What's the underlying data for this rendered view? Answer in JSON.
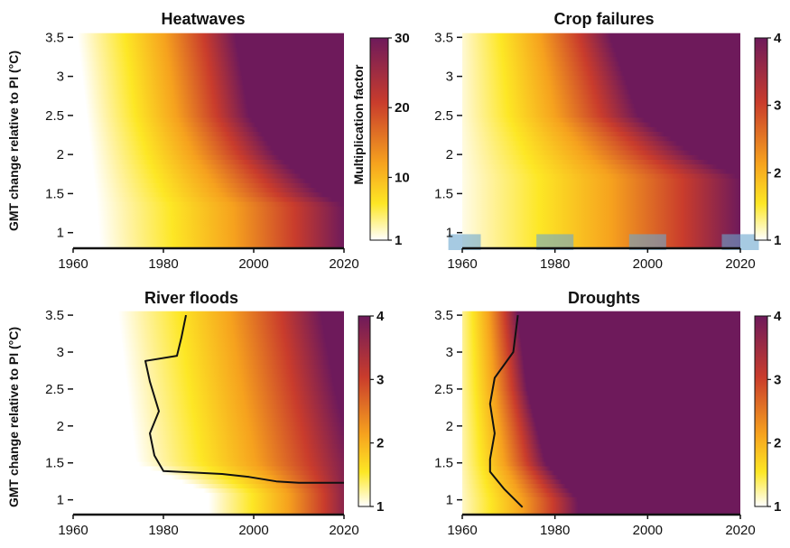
{
  "chart_data": [
    {
      "type": "heatmap",
      "title": "Heatwaves",
      "ylabel": "GMT change relative to PI (°C)",
      "xlabel": "",
      "xlim": [
        1960,
        2020
      ],
      "ylim": [
        0.8,
        3.55
      ],
      "x_ticks": [
        "1960",
        "1980",
        "2000",
        "2020"
      ],
      "y_ticks": [
        "1",
        "1.5",
        "2",
        "2.5",
        "3",
        "3.5"
      ],
      "colorbar": {
        "label": "Multiplication factor",
        "range": [
          1,
          30
        ],
        "ticks": [
          "1",
          "10",
          "20",
          "30"
        ]
      },
      "colors": {
        "low": "#ffffff",
        "mid1": "#fde725",
        "mid2": "#f6a21e",
        "mid3": "#c93c2c",
        "high": "#6e1a5b"
      },
      "onset": [
        [
          1961,
          3.5
        ],
        [
          1963,
          2.5
        ],
        [
          1965,
          1.5
        ],
        [
          1966,
          0.8
        ]
      ],
      "saturation": [
        [
          1996,
          3.5
        ],
        [
          1999,
          2.5
        ],
        [
          2005,
          2.0
        ],
        [
          2015,
          1.5
        ],
        [
          2020,
          1.35
        ]
      ],
      "contour": []
    },
    {
      "type": "heatmap",
      "title": "Crop failures",
      "ylabel": "",
      "xlabel": "",
      "xlim": [
        1960,
        2020
      ],
      "ylim": [
        0.8,
        3.55
      ],
      "x_ticks": [
        "1960",
        "1980",
        "2000",
        "2020"
      ],
      "y_ticks": [
        "1",
        "1.5",
        "2",
        "2.5",
        "3",
        "3.5"
      ],
      "colorbar": {
        "label": "",
        "range": [
          1,
          4
        ],
        "ticks": [
          "1",
          "2",
          "3",
          "4"
        ]
      },
      "highlight_periods": [
        [
          1957,
          1964
        ],
        [
          1976,
          1984
        ],
        [
          1996,
          2004
        ],
        [
          2016,
          2024
        ]
      ],
      "onset": [
        [
          1958,
          3.5
        ],
        [
          1958,
          0.8
        ]
      ],
      "saturation": [
        [
          1992,
          3.5
        ],
        [
          1998,
          2.5
        ],
        [
          2010,
          2.0
        ],
        [
          2020,
          1.7
        ]
      ],
      "contour": []
    },
    {
      "type": "heatmap",
      "title": "River floods",
      "ylabel": "GMT change relative to PI (°C)",
      "xlabel": "",
      "xlim": [
        1960,
        2020
      ],
      "ylim": [
        0.8,
        3.55
      ],
      "x_ticks": [
        "1960",
        "1980",
        "2000",
        "2020"
      ],
      "y_ticks": [
        "1",
        "1.5",
        "2",
        "2.5",
        "3",
        "3.5"
      ],
      "colorbar": {
        "label": "",
        "range": [
          1,
          4
        ],
        "ticks": [
          "1",
          "2",
          "3",
          "4"
        ]
      },
      "onset": [
        [
          1970,
          3.5
        ],
        [
          1972,
          2.5
        ],
        [
          1974,
          1.5
        ],
        [
          1990,
          1.1
        ]
      ],
      "saturation": [
        [
          2015,
          3.5
        ],
        [
          2018,
          2.5
        ],
        [
          2022,
          1.5
        ]
      ],
      "contour": [
        [
          1985,
          3.5
        ],
        [
          1984,
          3.2
        ],
        [
          1983,
          2.95
        ],
        [
          1976,
          2.88
        ],
        [
          1977,
          2.6
        ],
        [
          1979,
          2.2
        ],
        [
          1977,
          1.9
        ],
        [
          1978,
          1.6
        ],
        [
          1980,
          1.39
        ],
        [
          1993,
          1.35
        ],
        [
          1999,
          1.31
        ],
        [
          2005,
          1.25
        ],
        [
          2010,
          1.23
        ],
        [
          2020,
          1.23
        ]
      ]
    },
    {
      "type": "heatmap",
      "title": "Droughts",
      "ylabel": "",
      "xlabel": "",
      "xlim": [
        1960,
        2020
      ],
      "ylim": [
        0.8,
        3.55
      ],
      "x_ticks": [
        "1960",
        "1980",
        "2000",
        "2020"
      ],
      "y_ticks": [
        "1",
        "1.5",
        "2",
        "2.5",
        "3",
        "3.5"
      ],
      "colorbar": {
        "label": "",
        "range": [
          1,
          4
        ],
        "ticks": [
          "1",
          "2",
          "3",
          "4"
        ]
      },
      "onset": [
        [
          1958,
          3.5
        ],
        [
          1958,
          0.8
        ]
      ],
      "saturation": [
        [
          1972,
          3.5
        ],
        [
          1974,
          2.5
        ],
        [
          1978,
          1.5
        ],
        [
          1985,
          1.0
        ]
      ],
      "contour": [
        [
          1972,
          3.5
        ],
        [
          1971,
          3.0
        ],
        [
          1967,
          2.65
        ],
        [
          1966,
          2.3
        ],
        [
          1967,
          1.9
        ],
        [
          1966,
          1.55
        ],
        [
          1966,
          1.38
        ],
        [
          1969,
          1.15
        ],
        [
          1973,
          0.9
        ]
      ]
    }
  ]
}
